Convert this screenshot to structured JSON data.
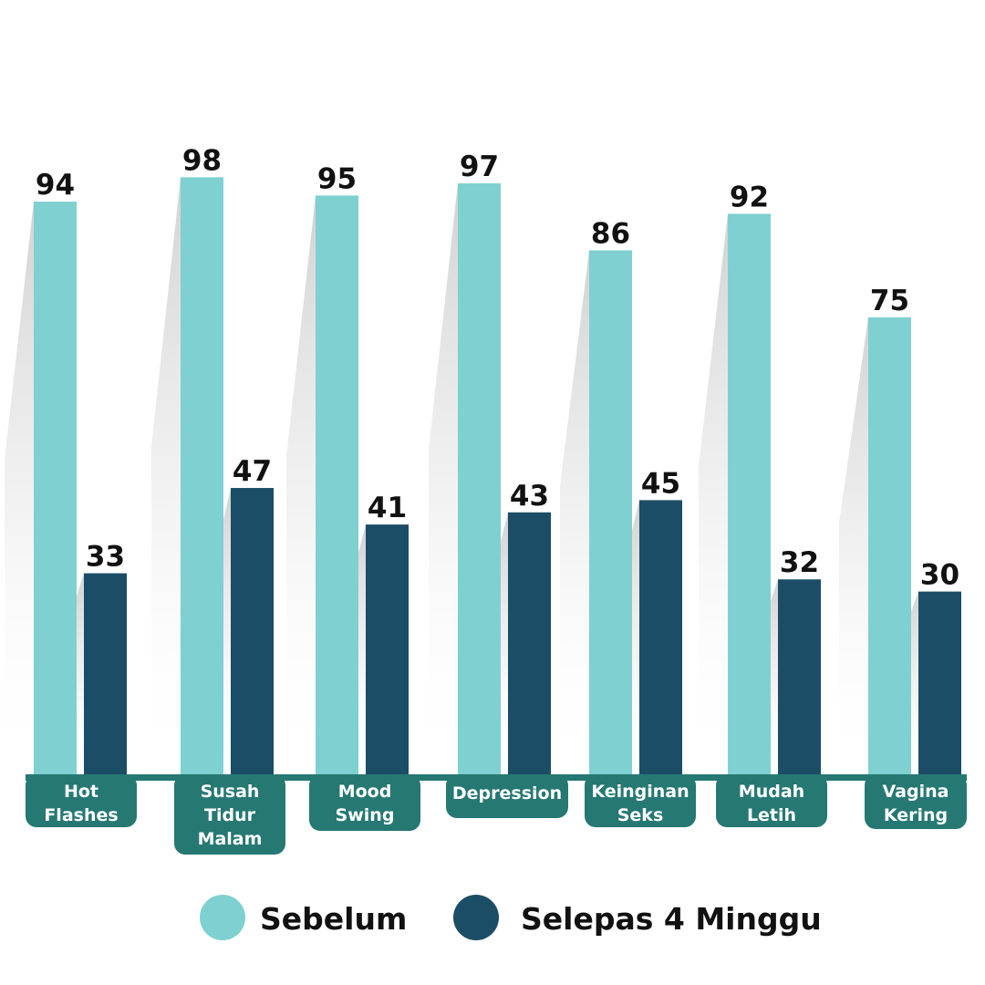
{
  "chart_data": {
    "type": "bar",
    "categories": [
      [
        "Hot",
        "Flashes"
      ],
      [
        "Susah",
        "Tidur",
        "Malam"
      ],
      [
        "Mood",
        "Swing"
      ],
      [
        "Depression"
      ],
      [
        "Keinginan",
        "Seks"
      ],
      [
        "Mudah",
        "Letih"
      ],
      [
        "Vagina",
        "Kering"
      ]
    ],
    "series": [
      {
        "name": "Sebelum",
        "values": [
          94,
          98,
          95,
          97,
          86,
          92,
          75
        ],
        "color": "#7fd0d0"
      },
      {
        "name": "Selepas 4 Minggu",
        "values": [
          33,
          47,
          41,
          43,
          45,
          32,
          30
        ],
        "color": "#1b4d66"
      }
    ],
    "ylim": [
      0,
      100
    ],
    "grid": false,
    "legend": "bottom",
    "colors": {
      "axis": "#267873",
      "label_box": "#267873"
    }
  }
}
